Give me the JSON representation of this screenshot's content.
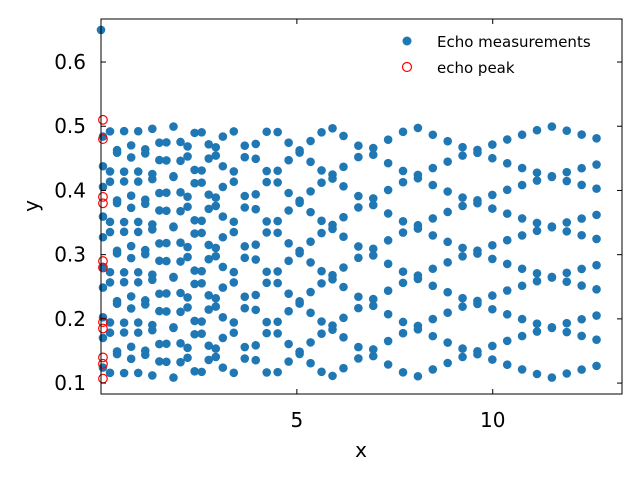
{
  "chart_data": {
    "type": "scatter",
    "title": "",
    "xlabel": "x",
    "ylabel": "y",
    "xlim": [
      0.0,
      13.3
    ],
    "ylim": [
      0.083,
      0.667
    ],
    "xticks": [
      5,
      10
    ],
    "xtick_labels": [
      "5",
      "10"
    ],
    "yticks": [
      0.1,
      0.2,
      0.3,
      0.4,
      0.5,
      0.6
    ],
    "ytick_labels": [
      "0.1",
      "0.2",
      "0.3",
      "0.4",
      "0.5",
      "0.6"
    ],
    "grid": false,
    "legend_position": "top-right",
    "series": [
      {
        "name": "Echo measurements",
        "marker": "filled-circle",
        "color": "#1f77b4",
        "generator": {
          "rows_x_range": [
            0.05,
            13.0
          ],
          "y_min": 0.1,
          "y_max": 0.5,
          "description": "bouncing trajectories between y=0.1 and y=0.5 with decreasing frequency"
        },
        "points": [
          {
            "x": 0.0,
            "y": 0.65
          }
        ]
      },
      {
        "name": "echo peak",
        "marker": "open-circle",
        "color": "#ff0000",
        "points": [
          {
            "x": 0.05,
            "y": 0.51
          },
          {
            "x": 0.05,
            "y": 0.48
          },
          {
            "x": 0.05,
            "y": 0.39
          },
          {
            "x": 0.05,
            "y": 0.38
          },
          {
            "x": 0.05,
            "y": 0.29
          },
          {
            "x": 0.05,
            "y": 0.28
          },
          {
            "x": 0.05,
            "y": 0.195
          },
          {
            "x": 0.05,
            "y": 0.185
          },
          {
            "x": 0.05,
            "y": 0.14
          },
          {
            "x": 0.05,
            "y": 0.13
          },
          {
            "x": 0.05,
            "y": 0.107
          }
        ]
      }
    ]
  }
}
